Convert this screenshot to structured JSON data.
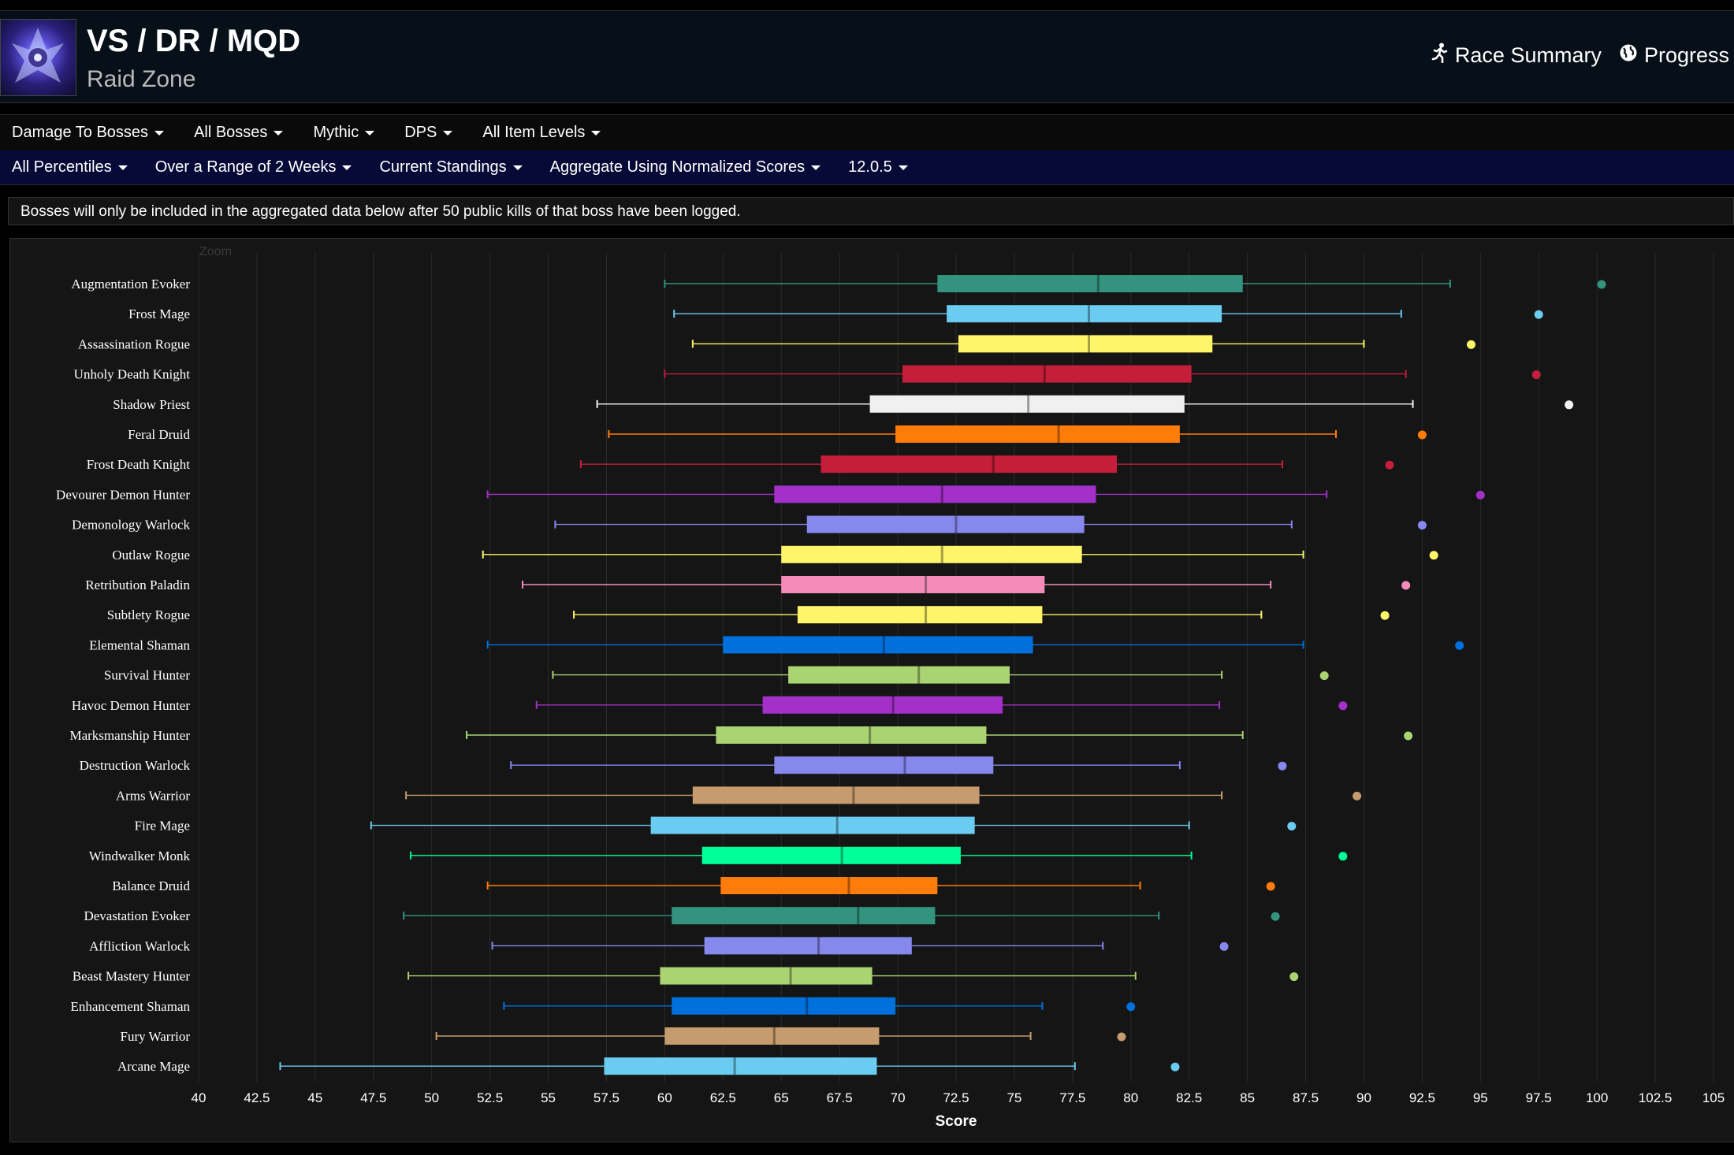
{
  "header": {
    "title": "VS / DR / MQD",
    "subtitle": "Raid Zone",
    "links": [
      {
        "label": "Race Summary",
        "icon": "running-person-icon"
      },
      {
        "label": "Progress",
        "icon": "globe-icon"
      }
    ]
  },
  "menu_primary": [
    "Damage To Bosses",
    "All Bosses",
    "Mythic",
    "DPS",
    "All Item Levels"
  ],
  "menu_secondary": [
    "All Percentiles",
    "Over a Range of 2 Weeks",
    "Current Standings",
    "Aggregate Using Normalized Scores",
    "12.0.5"
  ],
  "notice": "Bosses will only be included in the aggregated data below after 50 public kills of that boss have been logged.",
  "chart_data": {
    "type": "boxplot",
    "zoom_label": "Zoom",
    "xlabel": "Score",
    "xlim": [
      40,
      105
    ],
    "xticks": [
      40,
      42.5,
      45,
      47.5,
      50,
      52.5,
      55,
      57.5,
      60,
      62.5,
      65,
      67.5,
      70,
      72.5,
      75,
      77.5,
      80,
      82.5,
      85,
      87.5,
      90,
      92.5,
      95,
      97.5,
      100,
      102.5,
      105
    ],
    "grid": true,
    "series": [
      {
        "name": "Augmentation Evoker",
        "color": "#33937f",
        "min": 60.0,
        "q1": 71.7,
        "median": 78.6,
        "q3": 84.8,
        "max": 93.7,
        "outlier": 100.2
      },
      {
        "name": "Frost Mage",
        "color": "#69ccf0",
        "min": 60.4,
        "q1": 72.1,
        "median": 78.2,
        "q3": 83.9,
        "max": 91.6,
        "outlier": 97.5
      },
      {
        "name": "Assassination Rogue",
        "color": "#fff569",
        "min": 61.2,
        "q1": 72.6,
        "median": 78.2,
        "q3": 83.5,
        "max": 90.0,
        "outlier": 94.6
      },
      {
        "name": "Unholy Death Knight",
        "color": "#c41e3a",
        "min": 60.0,
        "q1": 70.2,
        "median": 76.3,
        "q3": 82.6,
        "max": 91.8,
        "outlier": 97.4
      },
      {
        "name": "Shadow Priest",
        "color": "#f0f0f0",
        "min": 57.1,
        "q1": 68.8,
        "median": 75.6,
        "q3": 82.3,
        "max": 92.1,
        "outlier": 98.8
      },
      {
        "name": "Feral Druid",
        "color": "#ff7c0a",
        "min": 57.6,
        "q1": 69.9,
        "median": 76.9,
        "q3": 82.1,
        "max": 88.8,
        "outlier": 92.5
      },
      {
        "name": "Frost Death Knight",
        "color": "#c41e3a",
        "min": 56.4,
        "q1": 66.7,
        "median": 74.1,
        "q3": 79.4,
        "max": 86.5,
        "outlier": 91.1
      },
      {
        "name": "Devourer Demon Hunter",
        "color": "#a330c9",
        "min": 52.4,
        "q1": 64.7,
        "median": 71.9,
        "q3": 78.5,
        "max": 88.4,
        "outlier": 95.0
      },
      {
        "name": "Demonology Warlock",
        "color": "#8788ee",
        "min": 55.3,
        "q1": 66.1,
        "median": 72.5,
        "q3": 78.0,
        "max": 86.9,
        "outlier": 92.5
      },
      {
        "name": "Outlaw Rogue",
        "color": "#fff569",
        "min": 52.2,
        "q1": 65.0,
        "median": 71.9,
        "q3": 77.9,
        "max": 87.4,
        "outlier": 93.0
      },
      {
        "name": "Retribution Paladin",
        "color": "#f48cba",
        "min": 53.9,
        "q1": 65.0,
        "median": 71.2,
        "q3": 76.3,
        "max": 86.0,
        "outlier": 91.8
      },
      {
        "name": "Subtlety Rogue",
        "color": "#fff569",
        "min": 56.1,
        "q1": 65.7,
        "median": 71.2,
        "q3": 76.2,
        "max": 85.6,
        "outlier": 90.9
      },
      {
        "name": "Elemental Shaman",
        "color": "#0070dd",
        "min": 52.4,
        "q1": 62.5,
        "median": 69.4,
        "q3": 75.8,
        "max": 87.4,
        "outlier": 94.1
      },
      {
        "name": "Survival Hunter",
        "color": "#aad372",
        "min": 55.2,
        "q1": 65.3,
        "median": 70.9,
        "q3": 74.8,
        "max": 83.9,
        "outlier": 88.3
      },
      {
        "name": "Havoc Demon Hunter",
        "color": "#a330c9",
        "min": 54.5,
        "q1": 64.2,
        "median": 69.8,
        "q3": 74.5,
        "max": 83.8,
        "outlier": 89.1
      },
      {
        "name": "Marksmanship Hunter",
        "color": "#aad372",
        "min": 51.5,
        "q1": 62.2,
        "median": 68.8,
        "q3": 73.8,
        "max": 84.8,
        "outlier": 91.9
      },
      {
        "name": "Destruction Warlock",
        "color": "#8788ee",
        "min": 53.4,
        "q1": 64.7,
        "median": 70.3,
        "q3": 74.1,
        "max": 82.1,
        "outlier": 86.5
      },
      {
        "name": "Arms Warrior",
        "color": "#c69b6d",
        "min": 48.9,
        "q1": 61.2,
        "median": 68.1,
        "q3": 73.5,
        "max": 83.9,
        "outlier": 89.7
      },
      {
        "name": "Fire Mage",
        "color": "#69ccf0",
        "min": 47.4,
        "q1": 59.4,
        "median": 67.4,
        "q3": 73.3,
        "max": 82.5,
        "outlier": 86.9
      },
      {
        "name": "Windwalker Monk",
        "color": "#00ff98",
        "min": 49.1,
        "q1": 61.6,
        "median": 67.6,
        "q3": 72.7,
        "max": 82.6,
        "outlier": 89.1
      },
      {
        "name": "Balance Druid",
        "color": "#ff7c0a",
        "min": 52.4,
        "q1": 62.4,
        "median": 67.9,
        "q3": 71.7,
        "max": 80.4,
        "outlier": 86.0
      },
      {
        "name": "Devastation Evoker",
        "color": "#33937f",
        "min": 48.8,
        "q1": 60.3,
        "median": 68.3,
        "q3": 71.6,
        "max": 81.2,
        "outlier": 86.2
      },
      {
        "name": "Affliction Warlock",
        "color": "#8788ee",
        "min": 52.6,
        "q1": 61.7,
        "median": 66.6,
        "q3": 70.6,
        "max": 78.8,
        "outlier": 84.0
      },
      {
        "name": "Beast Mastery Hunter",
        "color": "#aad372",
        "min": 49.0,
        "q1": 59.8,
        "median": 65.4,
        "q3": 68.9,
        "max": 80.2,
        "outlier": 87.0
      },
      {
        "name": "Enhancement Shaman",
        "color": "#0070dd",
        "min": 53.1,
        "q1": 60.3,
        "median": 66.1,
        "q3": 69.9,
        "max": 76.2,
        "outlier": 80.0
      },
      {
        "name": "Fury Warrior",
        "color": "#c69b6d",
        "min": 50.2,
        "q1": 60.0,
        "median": 64.7,
        "q3": 69.2,
        "max": 75.7,
        "outlier": 79.6
      },
      {
        "name": "Arcane Mage",
        "color": "#69ccf0",
        "min": 43.5,
        "q1": 57.4,
        "median": 63.0,
        "q3": 69.1,
        "max": 77.6,
        "outlier": 81.9
      }
    ]
  }
}
